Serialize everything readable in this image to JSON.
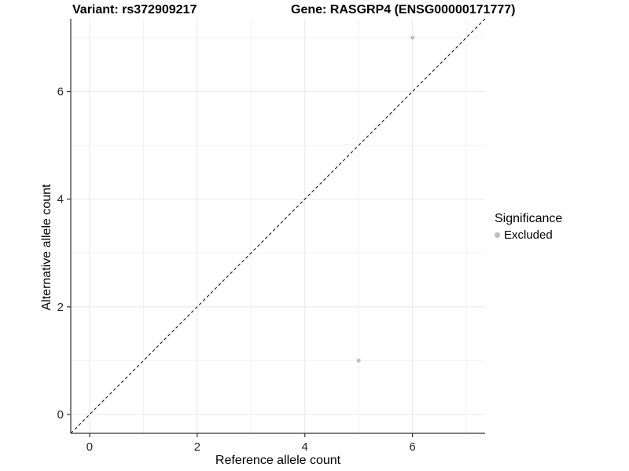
{
  "figure": {
    "title_left": "Variant: rs372909217",
    "title_right": "Gene: RASGRP4 (ENSG00000171777)"
  },
  "legend": {
    "title": "Significance",
    "items": [
      {
        "label": "Excluded",
        "color": "#bebebe"
      }
    ]
  },
  "chart_data": {
    "type": "scatter",
    "title": "Variant: rs372909217  Gene: RASGRP4 (ENSG00000171777)",
    "xlabel": "Reference allele count",
    "ylabel": "Alternative allele count",
    "xlim": [
      -0.35,
      7.35
    ],
    "ylim": [
      -0.35,
      7.35
    ],
    "x_ticks": [
      0,
      2,
      4,
      6
    ],
    "y_ticks": [
      0,
      2,
      4,
      6
    ],
    "x_minor_ticks": [
      1,
      3,
      5,
      7
    ],
    "y_minor_ticks": [
      1,
      3,
      5,
      7
    ],
    "grid": "major and minor, light grey on white",
    "legend_position": "right, vertically centered",
    "series": [
      {
        "name": "Excluded",
        "color": "#bebebe",
        "points": [
          {
            "x": 6,
            "y": 7
          },
          {
            "x": 5,
            "y": 1
          }
        ]
      }
    ],
    "reference_line": {
      "kind": "identity y=x",
      "slope": 1,
      "intercept": 0,
      "style": "dashed",
      "color": "#000000"
    }
  },
  "style": {
    "background": "#ffffff",
    "grid_major_color": "#e8e8e8",
    "grid_minor_color": "#f2f2f2",
    "axis_color": "#333333",
    "tick_label_color": "#262626",
    "text_color": "#000000",
    "point_color": "#bebebe"
  }
}
